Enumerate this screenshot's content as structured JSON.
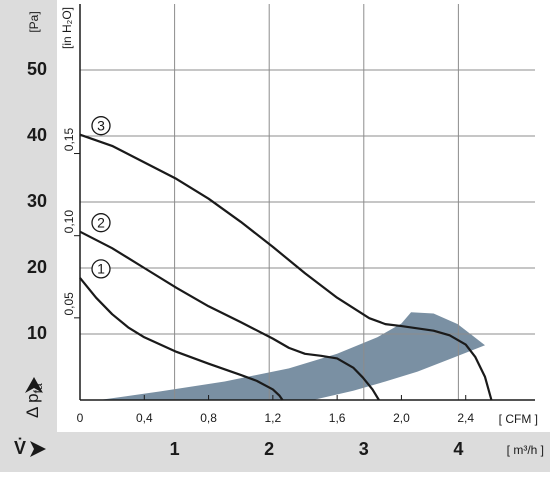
{
  "chart_data": {
    "type": "line",
    "ylabel": "Δ p",
    "ylabel_sub": "fa",
    "yunit": "[Pa]",
    "y2unit": "[in H₂O]",
    "xunit": "[ CFM ]",
    "x2label": "V̇",
    "x2unit": "[ m³/h ]",
    "xlim": [
      0,
      2.8
    ],
    "xticks": [
      0,
      {
        "value": 0.4,
        "label": "0,4"
      },
      {
        "value": 0.8,
        "label": "0,8"
      },
      {
        "value": 1.2,
        "label": "1,2"
      },
      {
        "value": 1.6,
        "label": "1,6"
      },
      {
        "value": 2.0,
        "label": "2,0"
      },
      {
        "value": 2.4,
        "label": "2,4"
      }
    ],
    "x2lim": [
      0,
      4.757
    ],
    "x2ticks": [
      1,
      2,
      3,
      4
    ],
    "ylim": [
      0,
      60
    ],
    "yticks": [
      10,
      20,
      30,
      40,
      50
    ],
    "y2lim": [
      0,
      0.241
    ],
    "y2ticks": [
      {
        "value": 0.05,
        "label": "0,05"
      },
      {
        "value": 0.1,
        "label": "0,10"
      },
      {
        "value": 0.15,
        "label": "0,15"
      }
    ],
    "grid": true,
    "series": [
      {
        "name": "1",
        "color": "#1a1a1a",
        "x": [
          0,
          0.1,
          0.2,
          0.3,
          0.4,
          0.6,
          0.8,
          1.0,
          1.1,
          1.2,
          1.24,
          1.26
        ],
        "values": [
          18.5,
          15.5,
          13,
          11,
          9.5,
          7.3,
          5.5,
          3.8,
          2.9,
          1.6,
          0.7,
          0
        ]
      },
      {
        "name": "2",
        "color": "#1a1a1a",
        "x": [
          0,
          0.2,
          0.4,
          0.6,
          0.8,
          1.0,
          1.2,
          1.3,
          1.4,
          1.5,
          1.6,
          1.7,
          1.76,
          1.82,
          1.86
        ],
        "values": [
          25.5,
          23,
          20,
          17,
          14.2,
          11.8,
          9.3,
          7.9,
          7,
          6.7,
          6.3,
          4.9,
          3.4,
          1.6,
          0
        ]
      },
      {
        "name": "3",
        "color": "#1a1a1a",
        "x": [
          0,
          0.2,
          0.4,
          0.6,
          0.8,
          1.0,
          1.2,
          1.4,
          1.6,
          1.8,
          1.9,
          2.0,
          2.2,
          2.3,
          2.4,
          2.46,
          2.52,
          2.56
        ],
        "values": [
          40.2,
          38.5,
          36,
          33.5,
          30.5,
          27,
          23.2,
          19.2,
          15.5,
          12.4,
          11.5,
          11.2,
          10.5,
          9.8,
          8.4,
          6.5,
          3.5,
          0
        ]
      }
    ],
    "operating_range": {
      "color": "#7a90a3",
      "x": [
        0.12,
        0.5,
        0.9,
        1.3,
        1.6,
        1.85,
        2.0,
        2.06,
        2.2,
        2.35,
        2.52,
        2.3,
        2.1,
        1.9,
        1.7,
        1.45
      ],
      "values": [
        0,
        1.3,
        2.8,
        4.8,
        7,
        9.5,
        11.6,
        13.3,
        13.1,
        11.5,
        8.3,
        6.2,
        4.3,
        2.8,
        1.4,
        0
      ]
    }
  }
}
